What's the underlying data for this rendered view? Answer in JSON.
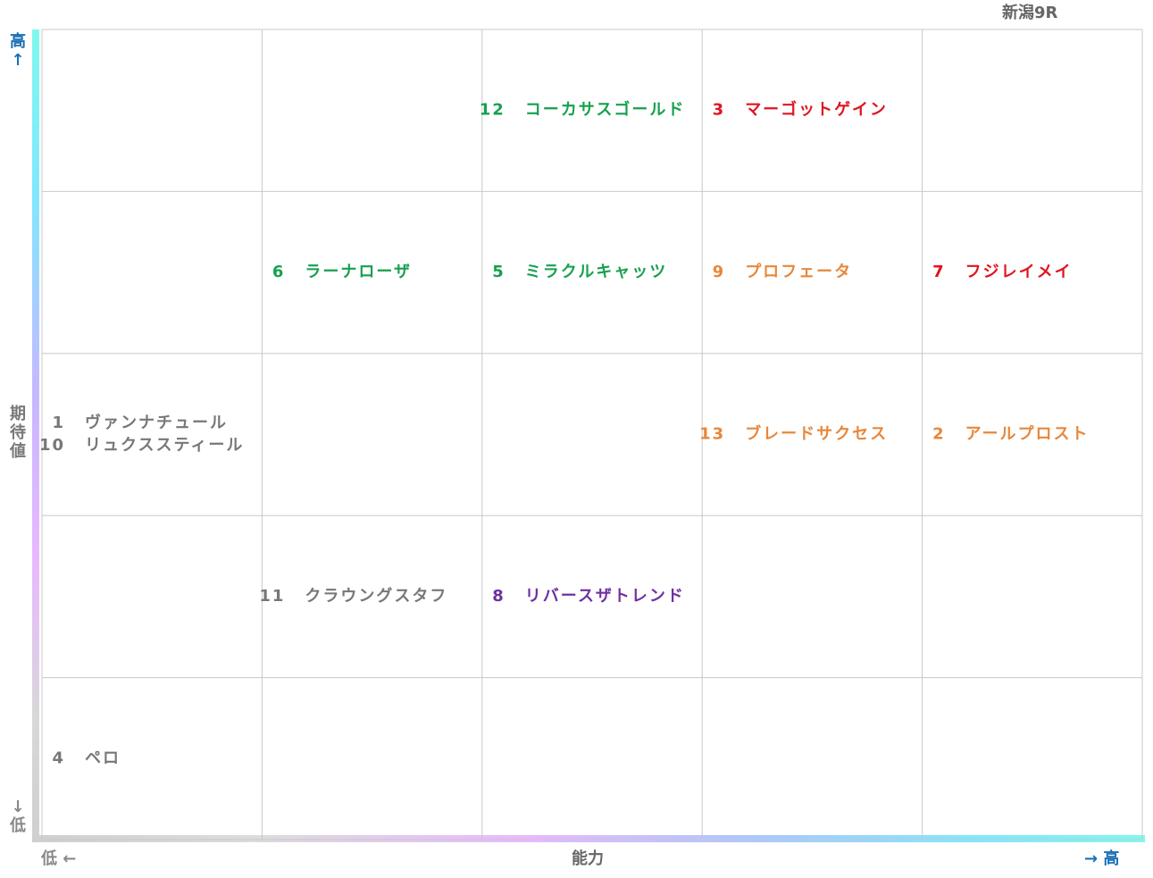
{
  "title": "新潟9R",
  "y_axis": {
    "high": "高↑",
    "label": "期待値",
    "low": "↓低"
  },
  "x_axis": {
    "low": "低 ←",
    "label": "能力",
    "high": "→ 高"
  },
  "grid": [
    [
      [],
      [],
      [
        {
          "number": "12",
          "name": "コーカサスゴールド",
          "color": "#17a04e"
        }
      ],
      [
        {
          "number": "3",
          "name": "マーゴットゲイン",
          "color": "#e0141e"
        }
      ],
      []
    ],
    [
      [],
      [
        {
          "number": "6",
          "name": "ラーナローザ",
          "color": "#17a04e"
        }
      ],
      [
        {
          "number": "5",
          "name": "ミラクルキャッツ",
          "color": "#17a04e"
        }
      ],
      [
        {
          "number": "9",
          "name": "プロフェータ",
          "color": "#e8873a"
        }
      ],
      [
        {
          "number": "7",
          "name": "フジレイメイ",
          "color": "#e0141e"
        }
      ]
    ],
    [
      [
        {
          "number": "1",
          "name": "ヴァンナチュール",
          "color": "#777777"
        },
        {
          "number": "10",
          "name": "リュクススティール",
          "color": "#777777"
        }
      ],
      [],
      [],
      [
        {
          "number": "13",
          "name": "ブレードサクセス",
          "color": "#e8873a"
        }
      ],
      [
        {
          "number": "2",
          "name": "アールプロスト",
          "color": "#e8873a"
        }
      ]
    ],
    [
      [],
      [
        {
          "number": "11",
          "name": "クラウングスタフ",
          "color": "#777777"
        }
      ],
      [
        {
          "number": "8",
          "name": "リバースザトレンド",
          "color": "#7030a0"
        }
      ],
      [],
      []
    ],
    [
      [
        {
          "number": "4",
          "name": "ペロ",
          "color": "#777777"
        }
      ],
      [],
      [],
      [],
      []
    ]
  ]
}
